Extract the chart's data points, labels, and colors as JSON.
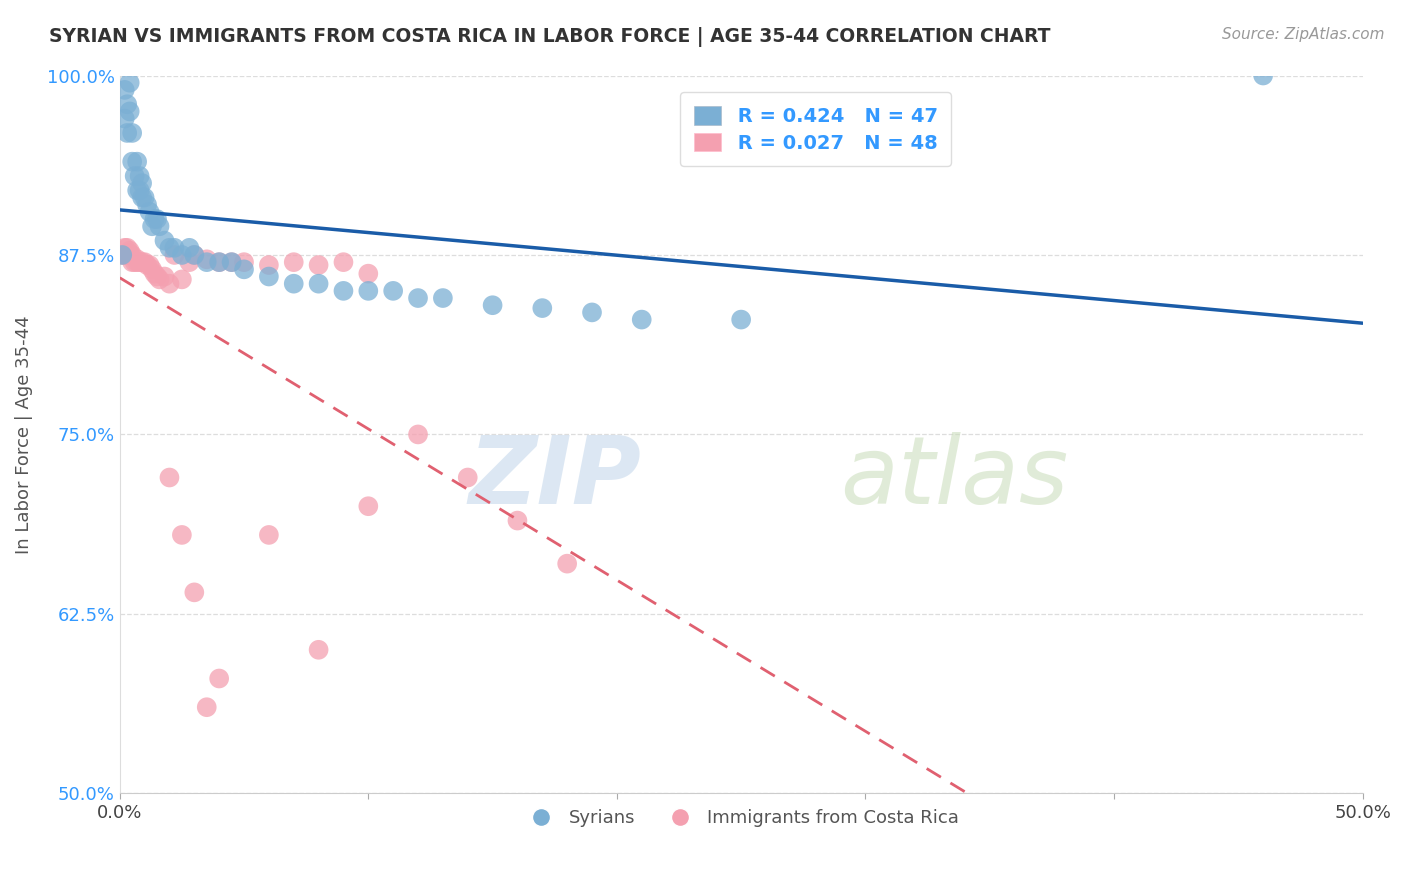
{
  "title": "SYRIAN VS IMMIGRANTS FROM COSTA RICA IN LABOR FORCE | AGE 35-44 CORRELATION CHART",
  "source": "Source: ZipAtlas.com",
  "ylabel": "In Labor Force | Age 35-44",
  "x_min": 0.0,
  "x_max": 0.5,
  "y_min": 0.5,
  "y_max": 1.0,
  "x_ticks": [
    0.0,
    0.1,
    0.2,
    0.3,
    0.4,
    0.5
  ],
  "x_tick_labels": [
    "0.0%",
    "",
    "",
    "",
    "",
    "50.0%"
  ],
  "y_ticks": [
    0.5,
    0.625,
    0.75,
    0.875,
    1.0
  ],
  "y_tick_labels": [
    "50.0%",
    "62.5%",
    "75.0%",
    "87.5%",
    "100.0%"
  ],
  "legend_r_blue": "R = 0.424",
  "legend_n_blue": "N = 47",
  "legend_r_pink": "R = 0.027",
  "legend_n_pink": "N = 48",
  "blue_color": "#7BAFD4",
  "pink_color": "#F4A0B0",
  "blue_line_color": "#1A5CA8",
  "pink_line_color": "#E06070",
  "watermark_zip": "ZIP",
  "watermark_atlas": "atlas",
  "watermark_color": "#C8DCF0",
  "legend_label_blue": "Syrians",
  "legend_label_pink": "Immigrants from Costa Rica",
  "syrians_x": [
    0.001,
    0.002,
    0.002,
    0.003,
    0.003,
    0.004,
    0.004,
    0.005,
    0.005,
    0.006,
    0.007,
    0.007,
    0.008,
    0.008,
    0.009,
    0.009,
    0.01,
    0.011,
    0.012,
    0.013,
    0.014,
    0.015,
    0.016,
    0.018,
    0.02,
    0.022,
    0.025,
    0.028,
    0.03,
    0.035,
    0.04,
    0.045,
    0.05,
    0.06,
    0.07,
    0.08,
    0.09,
    0.1,
    0.11,
    0.12,
    0.13,
    0.15,
    0.17,
    0.19,
    0.21,
    0.25,
    0.46
  ],
  "syrians_y": [
    0.875,
    0.97,
    0.99,
    0.96,
    0.98,
    0.975,
    0.995,
    0.94,
    0.96,
    0.93,
    0.92,
    0.94,
    0.92,
    0.93,
    0.915,
    0.925,
    0.915,
    0.91,
    0.905,
    0.895,
    0.9,
    0.9,
    0.895,
    0.885,
    0.88,
    0.88,
    0.875,
    0.88,
    0.875,
    0.87,
    0.87,
    0.87,
    0.865,
    0.86,
    0.855,
    0.855,
    0.85,
    0.85,
    0.85,
    0.845,
    0.845,
    0.84,
    0.838,
    0.835,
    0.83,
    0.83,
    1.0
  ],
  "costarica_x": [
    0.001,
    0.002,
    0.002,
    0.003,
    0.003,
    0.004,
    0.004,
    0.005,
    0.005,
    0.006,
    0.007,
    0.007,
    0.008,
    0.009,
    0.01,
    0.011,
    0.012,
    0.013,
    0.014,
    0.015,
    0.016,
    0.018,
    0.02,
    0.022,
    0.025,
    0.028,
    0.03,
    0.035,
    0.04,
    0.045,
    0.05,
    0.06,
    0.07,
    0.08,
    0.09,
    0.1,
    0.12,
    0.14,
    0.16,
    0.18,
    0.02,
    0.025,
    0.03,
    0.06,
    0.08,
    0.1,
    0.04,
    0.035
  ],
  "costarica_y": [
    0.875,
    0.875,
    0.88,
    0.875,
    0.88,
    0.878,
    0.876,
    0.875,
    0.87,
    0.87,
    0.872,
    0.87,
    0.87,
    0.87,
    0.87,
    0.868,
    0.868,
    0.865,
    0.862,
    0.86,
    0.858,
    0.86,
    0.855,
    0.875,
    0.858,
    0.87,
    0.875,
    0.872,
    0.87,
    0.87,
    0.87,
    0.868,
    0.87,
    0.868,
    0.87,
    0.862,
    0.75,
    0.72,
    0.69,
    0.66,
    0.72,
    0.68,
    0.64,
    0.68,
    0.6,
    0.7,
    0.58,
    0.56
  ]
}
